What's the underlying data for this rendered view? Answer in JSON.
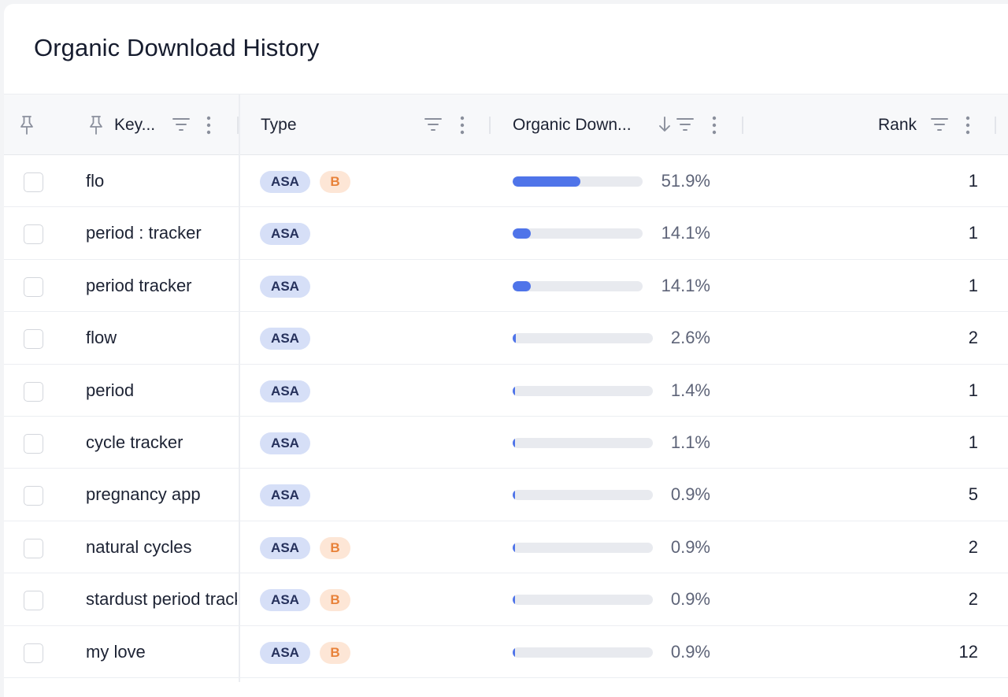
{
  "title": "Organic Download History",
  "columns": {
    "keyword": "Key...",
    "type": "Type",
    "organic": "Organic Down...",
    "rank": "Rank"
  },
  "colors": {
    "accent": "#4f74e9",
    "asa_bg": "#d6dff7",
    "b_bg": "#fde6d6",
    "b_text": "#e8823a"
  },
  "rows": [
    {
      "keyword": "flo",
      "asa": "ASA",
      "b": "B",
      "percent": "51.9%",
      "share": 0.519,
      "rank": "1"
    },
    {
      "keyword": "period : tracker",
      "asa": "ASA",
      "b": null,
      "percent": "14.1%",
      "share": 0.141,
      "rank": "1"
    },
    {
      "keyword": "period tracker",
      "asa": "ASA",
      "b": null,
      "percent": "14.1%",
      "share": 0.141,
      "rank": "1"
    },
    {
      "keyword": "flow",
      "asa": "ASA",
      "b": null,
      "percent": "2.6%",
      "share": 0.026,
      "rank": "2"
    },
    {
      "keyword": "period",
      "asa": "ASA",
      "b": null,
      "percent": "1.4%",
      "share": 0.014,
      "rank": "1"
    },
    {
      "keyword": "cycle tracker",
      "asa": "ASA",
      "b": null,
      "percent": "1.1%",
      "share": 0.011,
      "rank": "1"
    },
    {
      "keyword": "pregnancy app",
      "asa": "ASA",
      "b": null,
      "percent": "0.9%",
      "share": 0.009,
      "rank": "5"
    },
    {
      "keyword": "natural cycles",
      "asa": "ASA",
      "b": "B",
      "percent": "0.9%",
      "share": 0.009,
      "rank": "2"
    },
    {
      "keyword": "stardust period tracker",
      "asa": "ASA",
      "b": "B",
      "percent": "0.9%",
      "share": 0.009,
      "rank": "2"
    },
    {
      "keyword": "my love",
      "asa": "ASA",
      "b": "B",
      "percent": "0.9%",
      "share": 0.009,
      "rank": "12"
    }
  ]
}
